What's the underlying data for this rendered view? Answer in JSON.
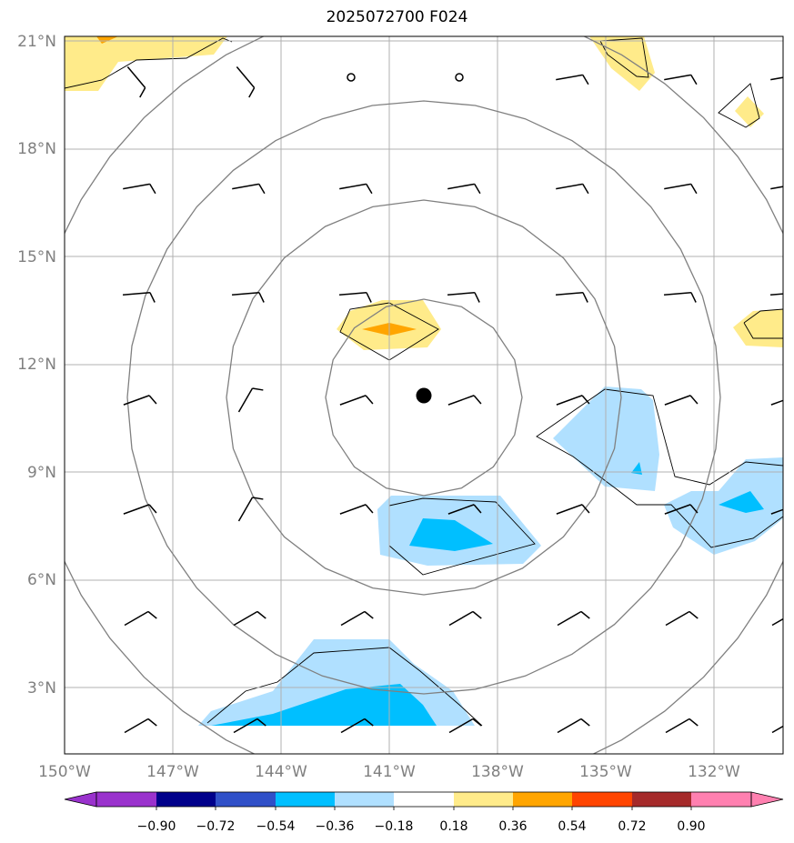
{
  "title": "2025072700 F024",
  "map": {
    "lon_ticks": [
      "150°W",
      "147°W",
      "144°W",
      "141°W",
      "138°W",
      "135°W",
      "132°W"
    ],
    "lat_ticks": [
      "3°N",
      "6°N",
      "9°N",
      "12°N",
      "15°N",
      "18°N",
      "21°N"
    ],
    "lon_range": [
      -150,
      -130
    ],
    "lat_range": [
      1,
      21
    ],
    "storm_center": {
      "lon": -140,
      "lat": 11
    },
    "range_rings": "concentric circles around storm center",
    "grid": true
  },
  "colorbar": {
    "tick_labels": [
      "−0.90",
      "−0.72",
      "−0.54",
      "−0.36",
      "−0.18",
      "0.18",
      "0.36",
      "0.54",
      "0.72",
      "0.90"
    ],
    "colors": [
      "#9a32cd",
      "#00008b",
      "#3050c8",
      "#00bfff",
      "#b0e0ff",
      "#ffffff",
      "#ffeb8a",
      "#ffa500",
      "#ff4500",
      "#a52a2a",
      "#ff80b0"
    ],
    "extend": "both"
  }
}
